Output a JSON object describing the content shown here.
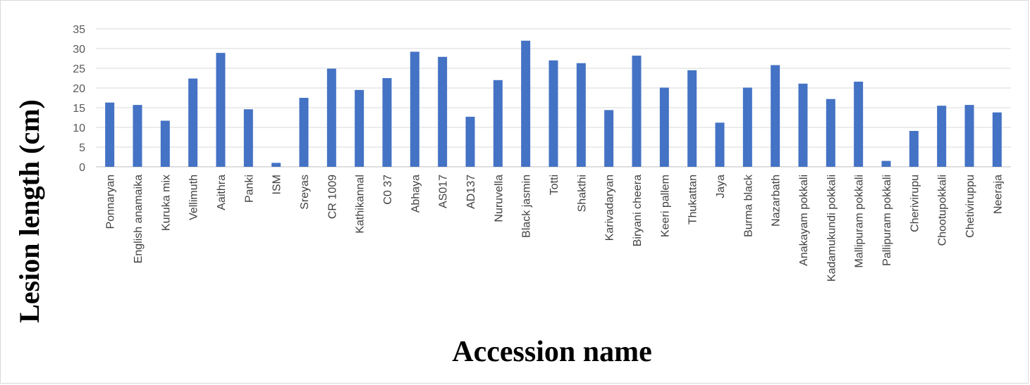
{
  "chart_data": {
    "type": "bar",
    "xlabel": "Accession name",
    "ylabel": "Lesion length (cm)",
    "ylim": [
      0,
      35
    ],
    "yticks": [
      0,
      5,
      10,
      15,
      20,
      25,
      30,
      35
    ],
    "grid": true,
    "bar_color": "#4472c4",
    "categories": [
      "Ponnaryan",
      "English anamaika",
      "Kuruka mix",
      "Vellimuth",
      "Aaithra",
      "Panki",
      "ISM",
      "Sreyas",
      "CR 1009",
      "Kathikannal",
      "C0 37",
      "Abhaya",
      "AS017",
      "AD137",
      "Nuruvella",
      "Black jasmin",
      "Totti",
      "Shakthi",
      "Karivadaryan",
      "Biryani cheera",
      "Keeri pallem",
      "Thukattan",
      "Jaya",
      "Burma black",
      "Nazarbath",
      "Anakayam pokkali",
      "Kadamukundi pokkali",
      "Mallipuram pokkali",
      "Pallipuram pokkali",
      "Cherivirupu",
      "Chootupokkali",
      "Chetiviruppu",
      "Neeraja"
    ],
    "values": [
      16.3,
      15.7,
      11.7,
      22.4,
      28.9,
      14.6,
      1.0,
      17.5,
      24.9,
      19.5,
      22.5,
      29.2,
      27.9,
      12.7,
      22.0,
      32.0,
      27.0,
      26.3,
      14.4,
      28.2,
      20.1,
      24.5,
      11.2,
      20.1,
      25.8,
      21.1,
      17.2,
      21.6,
      1.5,
      9.1,
      15.5,
      15.7,
      13.8
    ]
  }
}
